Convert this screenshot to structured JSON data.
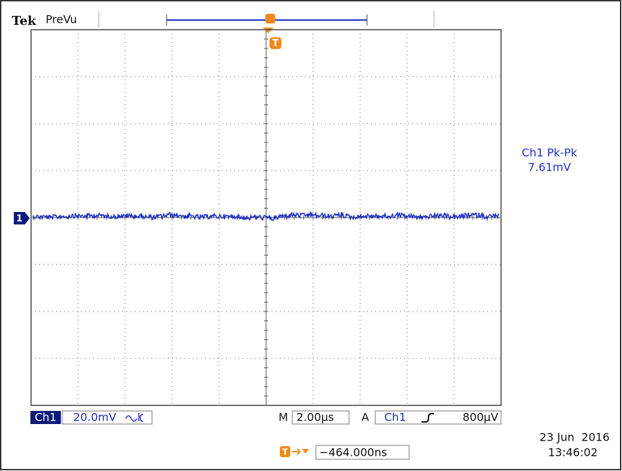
{
  "header": {
    "brand": "Tek",
    "mode": "PreVu"
  },
  "measurement": {
    "name": "Ch1 Pk-Pk",
    "value": "7.61mV"
  },
  "channel_marker": "1",
  "trigger_marker": "T",
  "footer": {
    "channel": "Ch1",
    "scale": "20.0mV",
    "timebase_label": "M",
    "timebase": "2.00µs",
    "trigger_mode": "A",
    "trigger_source": "Ch1",
    "trigger_level": "800µV",
    "trigger_position_marker": "T",
    "trigger_position": "−464.000ns",
    "date": "23 Jun  2016",
    "time": "13:46:02"
  }
}
